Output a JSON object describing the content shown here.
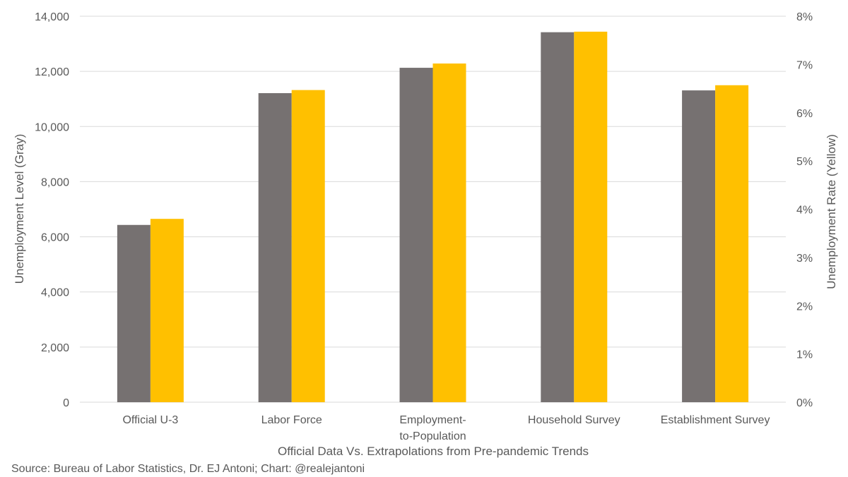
{
  "chart_data": {
    "type": "bar",
    "title": "",
    "categories": [
      "Official U-3",
      "Labor Force",
      "Employment-to-Population",
      "Household Survey",
      "Establishment Survey"
    ],
    "category_lines": [
      [
        "Official U-3"
      ],
      [
        "Labor Force"
      ],
      [
        "Employment-",
        "to-Population"
      ],
      [
        "Household Survey"
      ],
      [
        "Establishment Survey"
      ]
    ],
    "series": [
      {
        "name": "Unemployment Level (Gray)",
        "axis": "left",
        "color": "#767171",
        "values": [
          6430,
          11210,
          12130,
          13420,
          11310
        ]
      },
      {
        "name": "Unemployment Rate (Yellow)",
        "axis": "right",
        "color": "#FFC000",
        "values": [
          3.8,
          6.47,
          7.02,
          7.68,
          6.57
        ]
      }
    ],
    "xlabel": "Official Data Vs. Extrapolations from Pre-pandemic Trends",
    "ylabel": "Unemployment Level (Gray)",
    "y2label": "Unemployment Rate (Yellow)",
    "ylim": [
      0,
      14000
    ],
    "y2lim": [
      0,
      8
    ],
    "yticks": [
      "0",
      "2,000",
      "4,000",
      "6,000",
      "8,000",
      "10,000",
      "12,000",
      "14,000"
    ],
    "y2ticks": [
      "0%",
      "1%",
      "2%",
      "3%",
      "4%",
      "5%",
      "6%",
      "7%",
      "8%"
    ],
    "grid": true,
    "legend": "none",
    "source": "Source: Bureau of Labor Statistics, Dr. EJ Antoni; Chart: @realejantoni"
  },
  "colors": {
    "grid": "#D9D9D9",
    "text": "#595959",
    "background": "#FFFFFF"
  }
}
